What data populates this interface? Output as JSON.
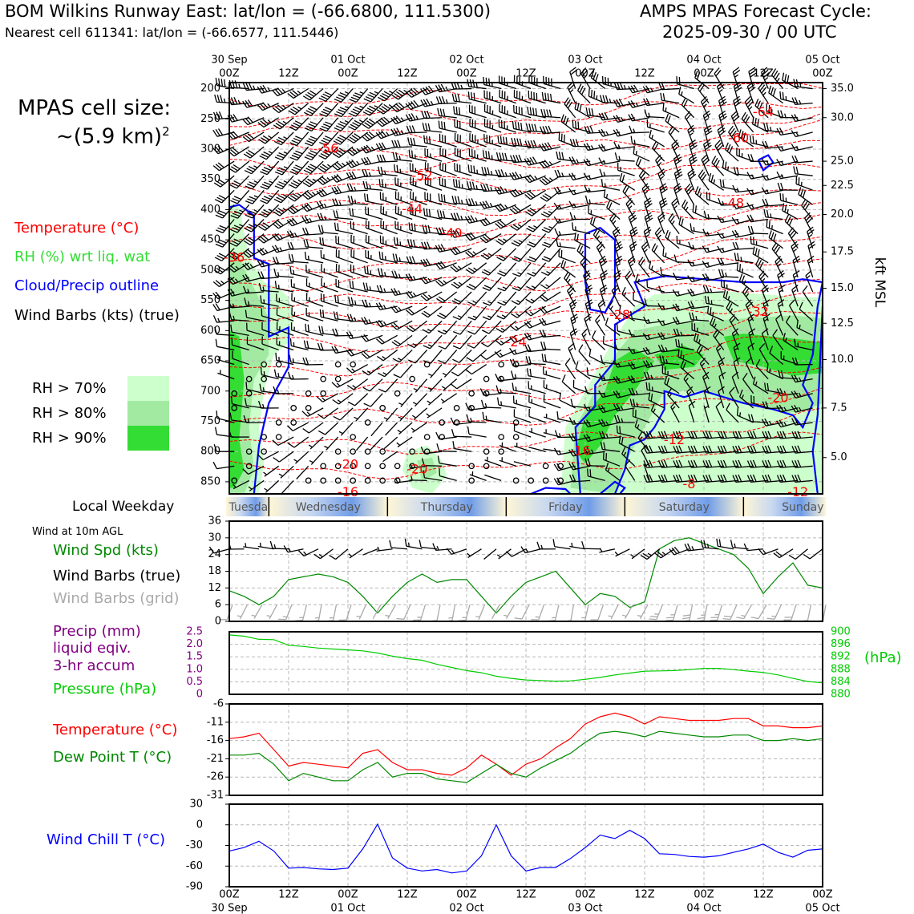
{
  "header": {
    "title_left": "BOM Wilkins Runway East: lat/lon = (-66.6800, 111.5300)",
    "subtitle_left": "Nearest cell 611341: lat/lon = (-66.6577, 111.5446)",
    "title_right_1": "AMPS MPAS Forecast Cycle:",
    "title_right_2": "2025-09-30 / 00 UTC"
  },
  "left_panel": {
    "cell_size_1": "MPAS cell size:",
    "cell_size_2": "~(5.9 km)",
    "cell_size_sup": "2",
    "legend": [
      {
        "label": "Temperature (°C)",
        "color": "#ff0000"
      },
      {
        "label": "RH (%) wrt liq. wat",
        "color": "#33dd33"
      },
      {
        "label": "Cloud/Precip outline",
        "color": "#0000ff"
      },
      {
        "label": "Wind Barbs (kts) (true)",
        "color": "#000000"
      }
    ],
    "rh_legend": [
      {
        "label": "RH > 70%",
        "color": "#ccffcc"
      },
      {
        "label": "RH > 80%",
        "color": "#a2eaa2"
      },
      {
        "label": "RH > 90%",
        "color": "#33dd33"
      }
    ],
    "weekday_label": "Local Weekday",
    "wind10m_label": "Wind at 10m AGL"
  },
  "time_axis": {
    "labels": [
      {
        "h": 0,
        "top": "30 Sep",
        "bottom": "00Z"
      },
      {
        "h": 12,
        "top": "",
        "bottom": "12Z"
      },
      {
        "h": 24,
        "top": "01 Oct",
        "bottom": "00Z"
      },
      {
        "h": 36,
        "top": "",
        "bottom": "12Z"
      },
      {
        "h": 48,
        "top": "02 Oct",
        "bottom": "00Z"
      },
      {
        "h": 60,
        "top": "",
        "bottom": "12Z"
      },
      {
        "h": 72,
        "top": "03 Oct",
        "bottom": "00Z"
      },
      {
        "h": 84,
        "top": "",
        "bottom": "12Z"
      },
      {
        "h": 96,
        "top": "04 Oct",
        "bottom": "00Z"
      },
      {
        "h": 108,
        "top": "",
        "bottom": "12Z"
      },
      {
        "h": 120,
        "top": "05 Oct",
        "bottom": "00Z"
      }
    ]
  },
  "weekdays": [
    {
      "label": "Tuesday",
      "start": -8,
      "end": 8
    },
    {
      "label": "Wednesday",
      "start": 8,
      "end": 32
    },
    {
      "label": "Thursday",
      "start": 32,
      "end": 56
    },
    {
      "label": "Friday",
      "start": 56,
      "end": 80
    },
    {
      "label": "Saturday",
      "start": 80,
      "end": 104
    },
    {
      "label": "Sunday",
      "start": 104,
      "end": 128
    }
  ],
  "chart_data": [
    {
      "type": "time-height cross section",
      "y_axis_left": "Pressure (hPa)",
      "y_axis_right": "kft MSL",
      "pressure_ticks": [
        200,
        250,
        300,
        350,
        400,
        450,
        500,
        550,
        600,
        650,
        700,
        750,
        800,
        850
      ],
      "kft_ticks": [
        {
          "p": 200,
          "label": "35.0"
        },
        {
          "p": 248,
          "label": "30.0"
        },
        {
          "p": 320,
          "label": "25.0"
        },
        {
          "p": 360,
          "label": "22.5"
        },
        {
          "p": 408,
          "label": "20.0"
        },
        {
          "p": 470,
          "label": "17.5"
        },
        {
          "p": 530,
          "label": "15.0"
        },
        {
          "p": 588,
          "label": "12.5"
        },
        {
          "p": 648,
          "label": "10.0"
        },
        {
          "p": 728,
          "label": "7.5"
        },
        {
          "p": 810,
          "label": "5.0"
        }
      ],
      "xlim": [
        0,
        120
      ],
      "ylim": [
        190,
        870
      ],
      "temperature_labels": [
        {
          "h": 20,
          "p": 300,
          "text": "-56"
        },
        {
          "h": 39,
          "p": 345,
          "text": "-52"
        },
        {
          "h": 37,
          "p": 400,
          "text": "-44"
        },
        {
          "h": 45,
          "p": 440,
          "text": "-40"
        },
        {
          "h": 58,
          "p": 620,
          "text": "-24"
        },
        {
          "h": 79,
          "p": 575,
          "text": "-28"
        },
        {
          "h": 108,
          "p": 240,
          "text": "-64"
        },
        {
          "h": 103,
          "p": 283,
          "text": "-60"
        },
        {
          "h": 102,
          "p": 390,
          "text": "-48"
        },
        {
          "h": 107,
          "p": 570,
          "text": "-32"
        },
        {
          "h": 111,
          "p": 712,
          "text": "-20"
        },
        {
          "h": 90,
          "p": 782,
          "text": "-12"
        },
        {
          "h": 71,
          "p": 800,
          "text": "-16"
        },
        {
          "h": 93,
          "p": 855,
          "text": "-8"
        },
        {
          "h": 115,
          "p": 877,
          "text": "-12"
        },
        {
          "h": 1,
          "p": 480,
          "text": "-36"
        },
        {
          "h": 24,
          "p": 822,
          "text": "-20"
        },
        {
          "h": 38,
          "p": 830,
          "text": "-20"
        },
        {
          "h": 24,
          "p": 878,
          "text": "-16"
        }
      ]
    },
    {
      "type": "line",
      "title": "Wind at 10m AGL",
      "legend": [
        "Wind Spd (kts)",
        "Wind Barbs (true)",
        "Wind Barbs (grid)"
      ],
      "legend_colors": [
        "#008800",
        "#000000",
        "#aaaaaa"
      ],
      "y_ticks": [
        "0",
        "6",
        "12",
        "18",
        "24",
        "30",
        "36"
      ],
      "ylim": [
        0,
        36
      ],
      "x": [
        0,
        3,
        6,
        9,
        12,
        15,
        18,
        21,
        24,
        27,
        30,
        33,
        36,
        39,
        42,
        45,
        48,
        51,
        54,
        57,
        60,
        63,
        66,
        69,
        72,
        75,
        78,
        81,
        84,
        87,
        90,
        93,
        96,
        99,
        102,
        105,
        108,
        111,
        114,
        117,
        120
      ],
      "series": [
        {
          "name": "Wind Spd (kts)",
          "color": "#008800",
          "values": [
            11,
            9,
            6,
            9,
            15,
            16,
            17,
            16,
            14,
            9,
            3,
            9,
            14,
            17,
            14,
            15,
            15,
            9,
            3,
            9,
            14,
            16,
            18,
            12,
            6,
            10,
            9,
            5,
            7,
            26,
            29,
            30,
            28,
            26,
            24,
            19,
            10,
            16,
            21,
            13,
            12
          ]
        }
      ]
    },
    {
      "type": "line",
      "legend": [
        "Precip (mm)",
        "liquid eqiv.",
        "3-hr accum",
        "Pressure (hPa)"
      ],
      "legend_colors": [
        "#800080",
        "#800080",
        "#800080",
        "#00cc00"
      ],
      "y_ticks_left": [
        "0",
        "0.5",
        "1.0",
        "1.5",
        "2.0",
        "2.5"
      ],
      "ylim_left": [
        0,
        2.5
      ],
      "y_ticks_right": [
        "880",
        "884",
        "888",
        "892",
        "896",
        "900"
      ],
      "ylim_right": [
        880,
        900
      ],
      "right_unit": "(hPa)",
      "x": [
        0,
        3,
        6,
        9,
        12,
        15,
        18,
        21,
        24,
        27,
        30,
        33,
        36,
        39,
        42,
        45,
        48,
        51,
        54,
        57,
        60,
        63,
        66,
        69,
        72,
        75,
        78,
        81,
        84,
        87,
        90,
        93,
        96,
        99,
        102,
        105,
        108,
        111,
        114,
        117,
        120
      ],
      "series": [
        {
          "name": "Pressure (hPa)",
          "color": "#00cc00",
          "values": [
            899.0,
            898.6,
            897.6,
            897.5,
            895.7,
            895.3,
            894.8,
            894.5,
            894.2,
            893.9,
            893.2,
            892.2,
            891.4,
            890.9,
            889.6,
            888.6,
            887.6,
            886.9,
            885.8,
            885.1,
            884.6,
            884.4,
            884.2,
            884.3,
            884.8,
            885.4,
            886.2,
            886.8,
            887.4,
            887.5,
            887.6,
            887.9,
            888.3,
            888.3,
            887.9,
            887.4,
            887.0,
            886.2,
            885.1,
            884.1,
            883.7
          ]
        }
      ]
    },
    {
      "type": "line",
      "legend": [
        "Temperature (°C)",
        "Dew Point T (°C)"
      ],
      "legend_colors": [
        "#ff0000",
        "#008800"
      ],
      "y_ticks": [
        "-31",
        "-26",
        "-21",
        "-16",
        "-11",
        "-6"
      ],
      "ylim": [
        -31,
        -6
      ],
      "x": [
        0,
        3,
        6,
        9,
        12,
        15,
        18,
        21,
        24,
        27,
        30,
        33,
        36,
        39,
        42,
        45,
        48,
        51,
        54,
        57,
        60,
        63,
        66,
        69,
        72,
        75,
        78,
        81,
        84,
        87,
        90,
        93,
        96,
        99,
        102,
        105,
        108,
        111,
        114,
        117,
        120
      ],
      "series": [
        {
          "name": "Temperature (°C)",
          "color": "#ff0000",
          "values": [
            -15.5,
            -15.0,
            -14.0,
            -18.5,
            -23.0,
            -22.0,
            -22.5,
            -23.0,
            -23.5,
            -19.5,
            -18.5,
            -22.0,
            -24.0,
            -24.0,
            -25.0,
            -25.5,
            -23.5,
            -20.0,
            -22.5,
            -25.5,
            -22.5,
            -21.0,
            -18.0,
            -15.5,
            -11.5,
            -9.5,
            -8.5,
            -9.5,
            -11.5,
            -9.5,
            -10.0,
            -10.5,
            -10.5,
            -10.5,
            -10.0,
            -10.0,
            -12.0,
            -12.0,
            -12.5,
            -12.5,
            -12.0
          ]
        },
        {
          "name": "Dew Point T (°C)",
          "color": "#008800",
          "values": [
            -20.0,
            -20.0,
            -19.5,
            -22.5,
            -27.0,
            -25.0,
            -26.0,
            -27.0,
            -27.0,
            -24.0,
            -22.0,
            -26.0,
            -25.0,
            -25.0,
            -26.5,
            -27.0,
            -27.5,
            -25.0,
            -22.5,
            -25.0,
            -26.0,
            -23.5,
            -21.5,
            -19.5,
            -16.5,
            -14.0,
            -13.5,
            -14.0,
            -15.0,
            -13.5,
            -14.0,
            -14.5,
            -15.0,
            -15.0,
            -14.5,
            -14.5,
            -16.0,
            -16.0,
            -15.5,
            -16.0,
            -15.5
          ]
        }
      ]
    },
    {
      "type": "line",
      "legend": [
        "Wind Chill T (°C)"
      ],
      "legend_colors": [
        "#0000ff"
      ],
      "y_ticks": [
        "-90",
        "-60",
        "-30",
        "0",
        "30"
      ],
      "ylim": [
        -90,
        30
      ],
      "x": [
        0,
        3,
        6,
        9,
        12,
        15,
        18,
        21,
        24,
        27,
        30,
        33,
        36,
        39,
        42,
        45,
        48,
        51,
        54,
        57,
        60,
        63,
        66,
        69,
        72,
        75,
        78,
        81,
        84,
        87,
        90,
        93,
        96,
        99,
        102,
        105,
        108,
        111,
        114,
        117,
        120
      ],
      "series": [
        {
          "name": "Wind Chill T (°C)",
          "color": "#0000ff",
          "values": [
            -38,
            -33,
            -24,
            -38,
            -63,
            -62,
            -64,
            -65,
            -63,
            -35,
            1,
            -48,
            -63,
            -67,
            -65,
            -70,
            -67,
            -45,
            0,
            -45,
            -67,
            -62,
            -62,
            -49,
            -33,
            -15,
            -20,
            -8,
            -20,
            -42,
            -43,
            -46,
            -47,
            -45,
            -40,
            -35,
            -28,
            -40,
            -47,
            -37,
            -35
          ]
        }
      ]
    }
  ]
}
